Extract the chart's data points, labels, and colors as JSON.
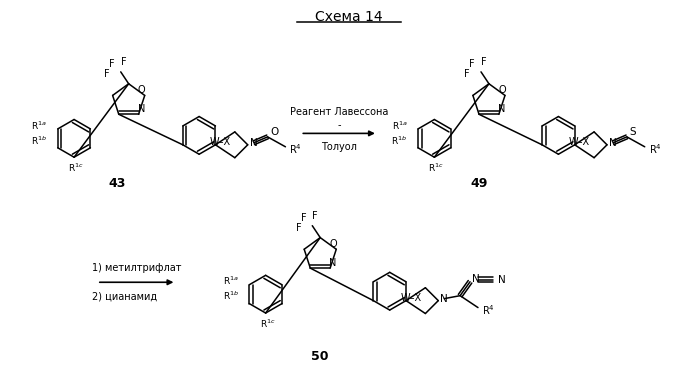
{
  "title": "Схема 14",
  "background_color": "#ffffff",
  "figsize": [
    6.99,
    3.7
  ],
  "dpi": 100,
  "reagent1_line1": "Реагент Лавессона",
  "reagent1_line2": "-",
  "reagent1_line3": "Толуол",
  "reagent2_line1": "1) метилтрифлат",
  "reagent2_line2": "2) цианамид",
  "label43": "43",
  "label49": "49",
  "label50": "50"
}
